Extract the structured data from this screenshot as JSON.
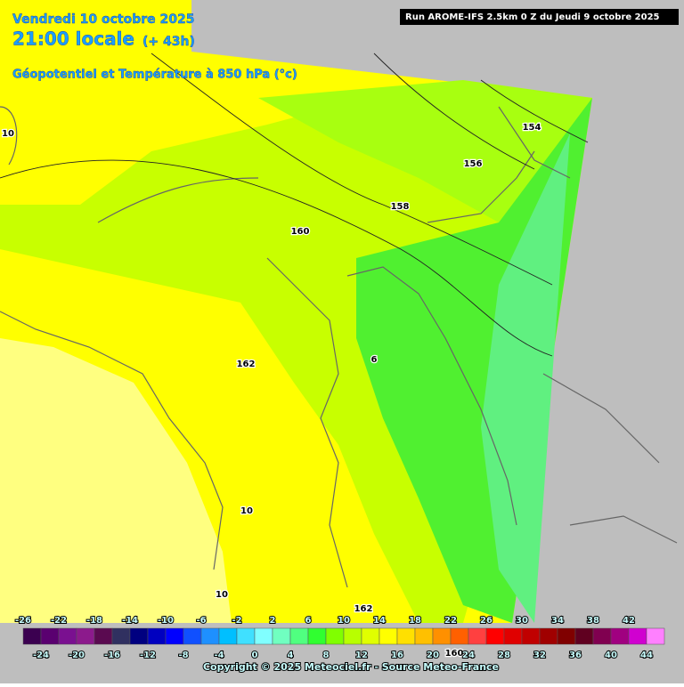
{
  "header": {
    "date": "Vendredi 10 octobre 2025",
    "time": "21:00 locale",
    "offset": "(+ 43h)",
    "subtitle": "Géopotentiel et Température à 850 hPa (°c)",
    "run": "Run AROME-IFS 2.5km 0 Z du Jeudi 9 octobre 2025"
  },
  "map_labels": [
    "10",
    "154",
    "156",
    "158",
    "160",
    "162",
    "6",
    "10",
    "10",
    "162",
    "160"
  ],
  "legend": {
    "values": [
      -26,
      -24,
      -22,
      -20,
      -18,
      -16,
      -14,
      -12,
      -10,
      -8,
      -6,
      -4,
      -2,
      0,
      2,
      4,
      6,
      8,
      10,
      12,
      14,
      16,
      18,
      20,
      22,
      24,
      26,
      28,
      30,
      32,
      34,
      36,
      38,
      40,
      42,
      44
    ],
    "colors": [
      "#3b0050",
      "#5a0070",
      "#7a1090",
      "#8c1a8c",
      "#5a0a50",
      "#303060",
      "#000080",
      "#0000c0",
      "#0000ff",
      "#1050ff",
      "#1e90ff",
      "#00bfff",
      "#40e0ff",
      "#80ffff",
      "#70ffc0",
      "#50ff80",
      "#30ff30",
      "#80ff00",
      "#b8ff00",
      "#e0ff00",
      "#ffff00",
      "#ffe000",
      "#ffc000",
      "#ff9000",
      "#ff6000",
      "#ff4040",
      "#ff0000",
      "#e00000",
      "#c00000",
      "#a00000",
      "#800000",
      "#600020",
      "#800050",
      "#a00080",
      "#d000d0",
      "#ff80ff"
    ]
  },
  "copyright": "Copyright © 2025 Meteociel.fr - Source Meteo-France"
}
